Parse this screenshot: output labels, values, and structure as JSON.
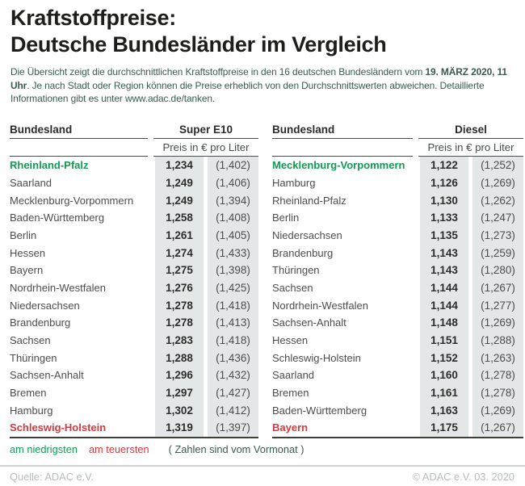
{
  "title": {
    "line1": "Kraftstoffpreise:",
    "line2": "Deutsche Bundesländer im Vergleich"
  },
  "intro": {
    "before_bold": "Die Übersicht zeigt die durchschnittlichen Kraftstoffpreise in den 16 deutschen Bundesländern vom ",
    "bold": "19. MÄRZ 2020, 11 Uhr",
    "after_bold": ". Je nach Stadt oder Region können die Preise erheblich von den Durchschnittswerten abweichen. Detaillierte Informationen gibt es unter www.adac.de/tanken."
  },
  "tables": [
    {
      "name_header": "Bundesland",
      "fuel_header": "Super E10",
      "unit_header": "Preis in € pro Liter",
      "rows": [
        {
          "state": "Rheinland-Pfalz",
          "price": "1,234",
          "prev": "(1,402)",
          "highlight": "lowest"
        },
        {
          "state": "Saarland",
          "price": "1,249",
          "prev": "(1,406)"
        },
        {
          "state": "Mecklenburg-Vorpommern",
          "price": "1,249",
          "prev": "(1,394)"
        },
        {
          "state": "Baden-Württemberg",
          "price": "1,258",
          "prev": "(1,408)"
        },
        {
          "state": "Berlin",
          "price": "1,261",
          "prev": "(1,405)"
        },
        {
          "state": "Hessen",
          "price": "1,274",
          "prev": "(1,433)"
        },
        {
          "state": "Bayern",
          "price": "1,275",
          "prev": "(1,398)"
        },
        {
          "state": "Nordrhein-Westfalen",
          "price": "1,276",
          "prev": "(1,425)"
        },
        {
          "state": "Niedersachsen",
          "price": "1,278",
          "prev": "(1,418)"
        },
        {
          "state": "Brandenburg",
          "price": "1,278",
          "prev": "(1,413)"
        },
        {
          "state": "Sachsen",
          "price": "1,283",
          "prev": "(1,418)"
        },
        {
          "state": "Thüringen",
          "price": "1,288",
          "prev": "(1,436)"
        },
        {
          "state": "Sachsen-Anhalt",
          "price": "1,296",
          "prev": "(1,432)"
        },
        {
          "state": "Bremen",
          "price": "1,297",
          "prev": "(1,427)"
        },
        {
          "state": "Hamburg",
          "price": "1,302",
          "prev": "(1,412)"
        },
        {
          "state": "Schleswig-Holstein",
          "price": "1,319",
          "prev": "(1,397)",
          "highlight": "highest"
        }
      ]
    },
    {
      "name_header": "Bundesland",
      "fuel_header": "Diesel",
      "unit_header": "Preis in € pro Liter",
      "rows": [
        {
          "state": "Mecklenburg-Vorpommern",
          "price": "1,122",
          "prev": "(1,252)",
          "highlight": "lowest"
        },
        {
          "state": "Hamburg",
          "price": "1,126",
          "prev": "(1,269)"
        },
        {
          "state": "Rheinland-Pfalz",
          "price": "1,130",
          "prev": "(1,262)"
        },
        {
          "state": "Berlin",
          "price": "1,133",
          "prev": "(1,247)"
        },
        {
          "state": "Niedersachsen",
          "price": "1,135",
          "prev": "(1,273)"
        },
        {
          "state": "Brandenburg",
          "price": "1,143",
          "prev": "(1,259)"
        },
        {
          "state": "Thüringen",
          "price": "1,143",
          "prev": "(1,280)"
        },
        {
          "state": "Sachsen",
          "price": "1,144",
          "prev": "(1,267)"
        },
        {
          "state": "Nordrhein-Westfalen",
          "price": "1,144",
          "prev": "(1,277)"
        },
        {
          "state": "Sachsen-Anhalt",
          "price": "1,148",
          "prev": "(1,269)"
        },
        {
          "state": "Hessen",
          "price": "1,151",
          "prev": "(1,288)"
        },
        {
          "state": "Schleswig-Holstein",
          "price": "1,152",
          "prev": "(1,263)"
        },
        {
          "state": "Saarland",
          "price": "1,160",
          "prev": "(1,278)"
        },
        {
          "state": "Bremen",
          "price": "1,161",
          "prev": "(1,278)"
        },
        {
          "state": "Baden-Württemberg",
          "price": "1,163",
          "prev": "(1,269)"
        },
        {
          "state": "Bayern",
          "price": "1,175",
          "prev": "(1,267)",
          "highlight": "highest"
        }
      ]
    }
  ],
  "chart_data": [
    {
      "type": "table",
      "title": "Super E10",
      "unit": "Preis in € pro Liter",
      "columns": [
        "Bundesland",
        "Preis",
        "Vormonat"
      ],
      "rows": [
        [
          "Rheinland-Pfalz",
          1.234,
          1.402
        ],
        [
          "Saarland",
          1.249,
          1.406
        ],
        [
          "Mecklenburg-Vorpommern",
          1.249,
          1.394
        ],
        [
          "Baden-Württemberg",
          1.258,
          1.408
        ],
        [
          "Berlin",
          1.261,
          1.405
        ],
        [
          "Hessen",
          1.274,
          1.433
        ],
        [
          "Bayern",
          1.275,
          1.398
        ],
        [
          "Nordrhein-Westfalen",
          1.276,
          1.425
        ],
        [
          "Niedersachsen",
          1.278,
          1.418
        ],
        [
          "Brandenburg",
          1.278,
          1.413
        ],
        [
          "Sachsen",
          1.283,
          1.418
        ],
        [
          "Thüringen",
          1.288,
          1.436
        ],
        [
          "Sachsen-Anhalt",
          1.296,
          1.432
        ],
        [
          "Bremen",
          1.297,
          1.427
        ],
        [
          "Hamburg",
          1.302,
          1.412
        ],
        [
          "Schleswig-Holstein",
          1.319,
          1.397
        ]
      ],
      "lowest": "Rheinland-Pfalz",
      "highest": "Schleswig-Holstein"
    },
    {
      "type": "table",
      "title": "Diesel",
      "unit": "Preis in € pro Liter",
      "columns": [
        "Bundesland",
        "Preis",
        "Vormonat"
      ],
      "rows": [
        [
          "Mecklenburg-Vorpommern",
          1.122,
          1.252
        ],
        [
          "Hamburg",
          1.126,
          1.269
        ],
        [
          "Rheinland-Pfalz",
          1.13,
          1.262
        ],
        [
          "Berlin",
          1.133,
          1.247
        ],
        [
          "Niedersachsen",
          1.135,
          1.273
        ],
        [
          "Brandenburg",
          1.143,
          1.259
        ],
        [
          "Thüringen",
          1.143,
          1.28
        ],
        [
          "Sachsen",
          1.144,
          1.267
        ],
        [
          "Nordrhein-Westfalen",
          1.144,
          1.277
        ],
        [
          "Sachsen-Anhalt",
          1.148,
          1.269
        ],
        [
          "Hessen",
          1.151,
          1.288
        ],
        [
          "Schleswig-Holstein",
          1.152,
          1.263
        ],
        [
          "Saarland",
          1.16,
          1.278
        ],
        [
          "Bremen",
          1.161,
          1.278
        ],
        [
          "Baden-Württemberg",
          1.163,
          1.269
        ],
        [
          "Bayern",
          1.175,
          1.267
        ]
      ],
      "lowest": "Mecklenburg-Vorpommern",
      "highest": "Bayern"
    }
  ],
  "legend": {
    "lowest": "am niedrigsten",
    "highest": "am teuersten",
    "note": "( Zahlen sind vom Vormonat )"
  },
  "footer": {
    "source": "Quelle: ADAC e.V.",
    "copyright": "© ADAC e.V. 03. 2020"
  },
  "colors": {
    "lowest_green": "#149a53",
    "highest_red": "#d43a3d",
    "price_column_bg": "#e4e7e7"
  }
}
